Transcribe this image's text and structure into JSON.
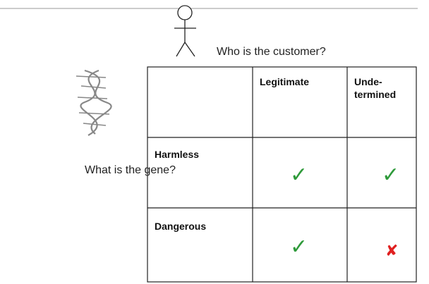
{
  "question_customer": "Who is the customer?",
  "question_gene": "What is the gene?",
  "table": {
    "columns": [
      [
        "Legitimate"
      ],
      [
        "Unde-",
        "termined"
      ]
    ],
    "rows": [
      {
        "label": "Harmless",
        "cells": [
          "✓",
          "✓"
        ]
      },
      {
        "label": "Dangerous",
        "cells": [
          "✓",
          "✘"
        ]
      }
    ]
  }
}
